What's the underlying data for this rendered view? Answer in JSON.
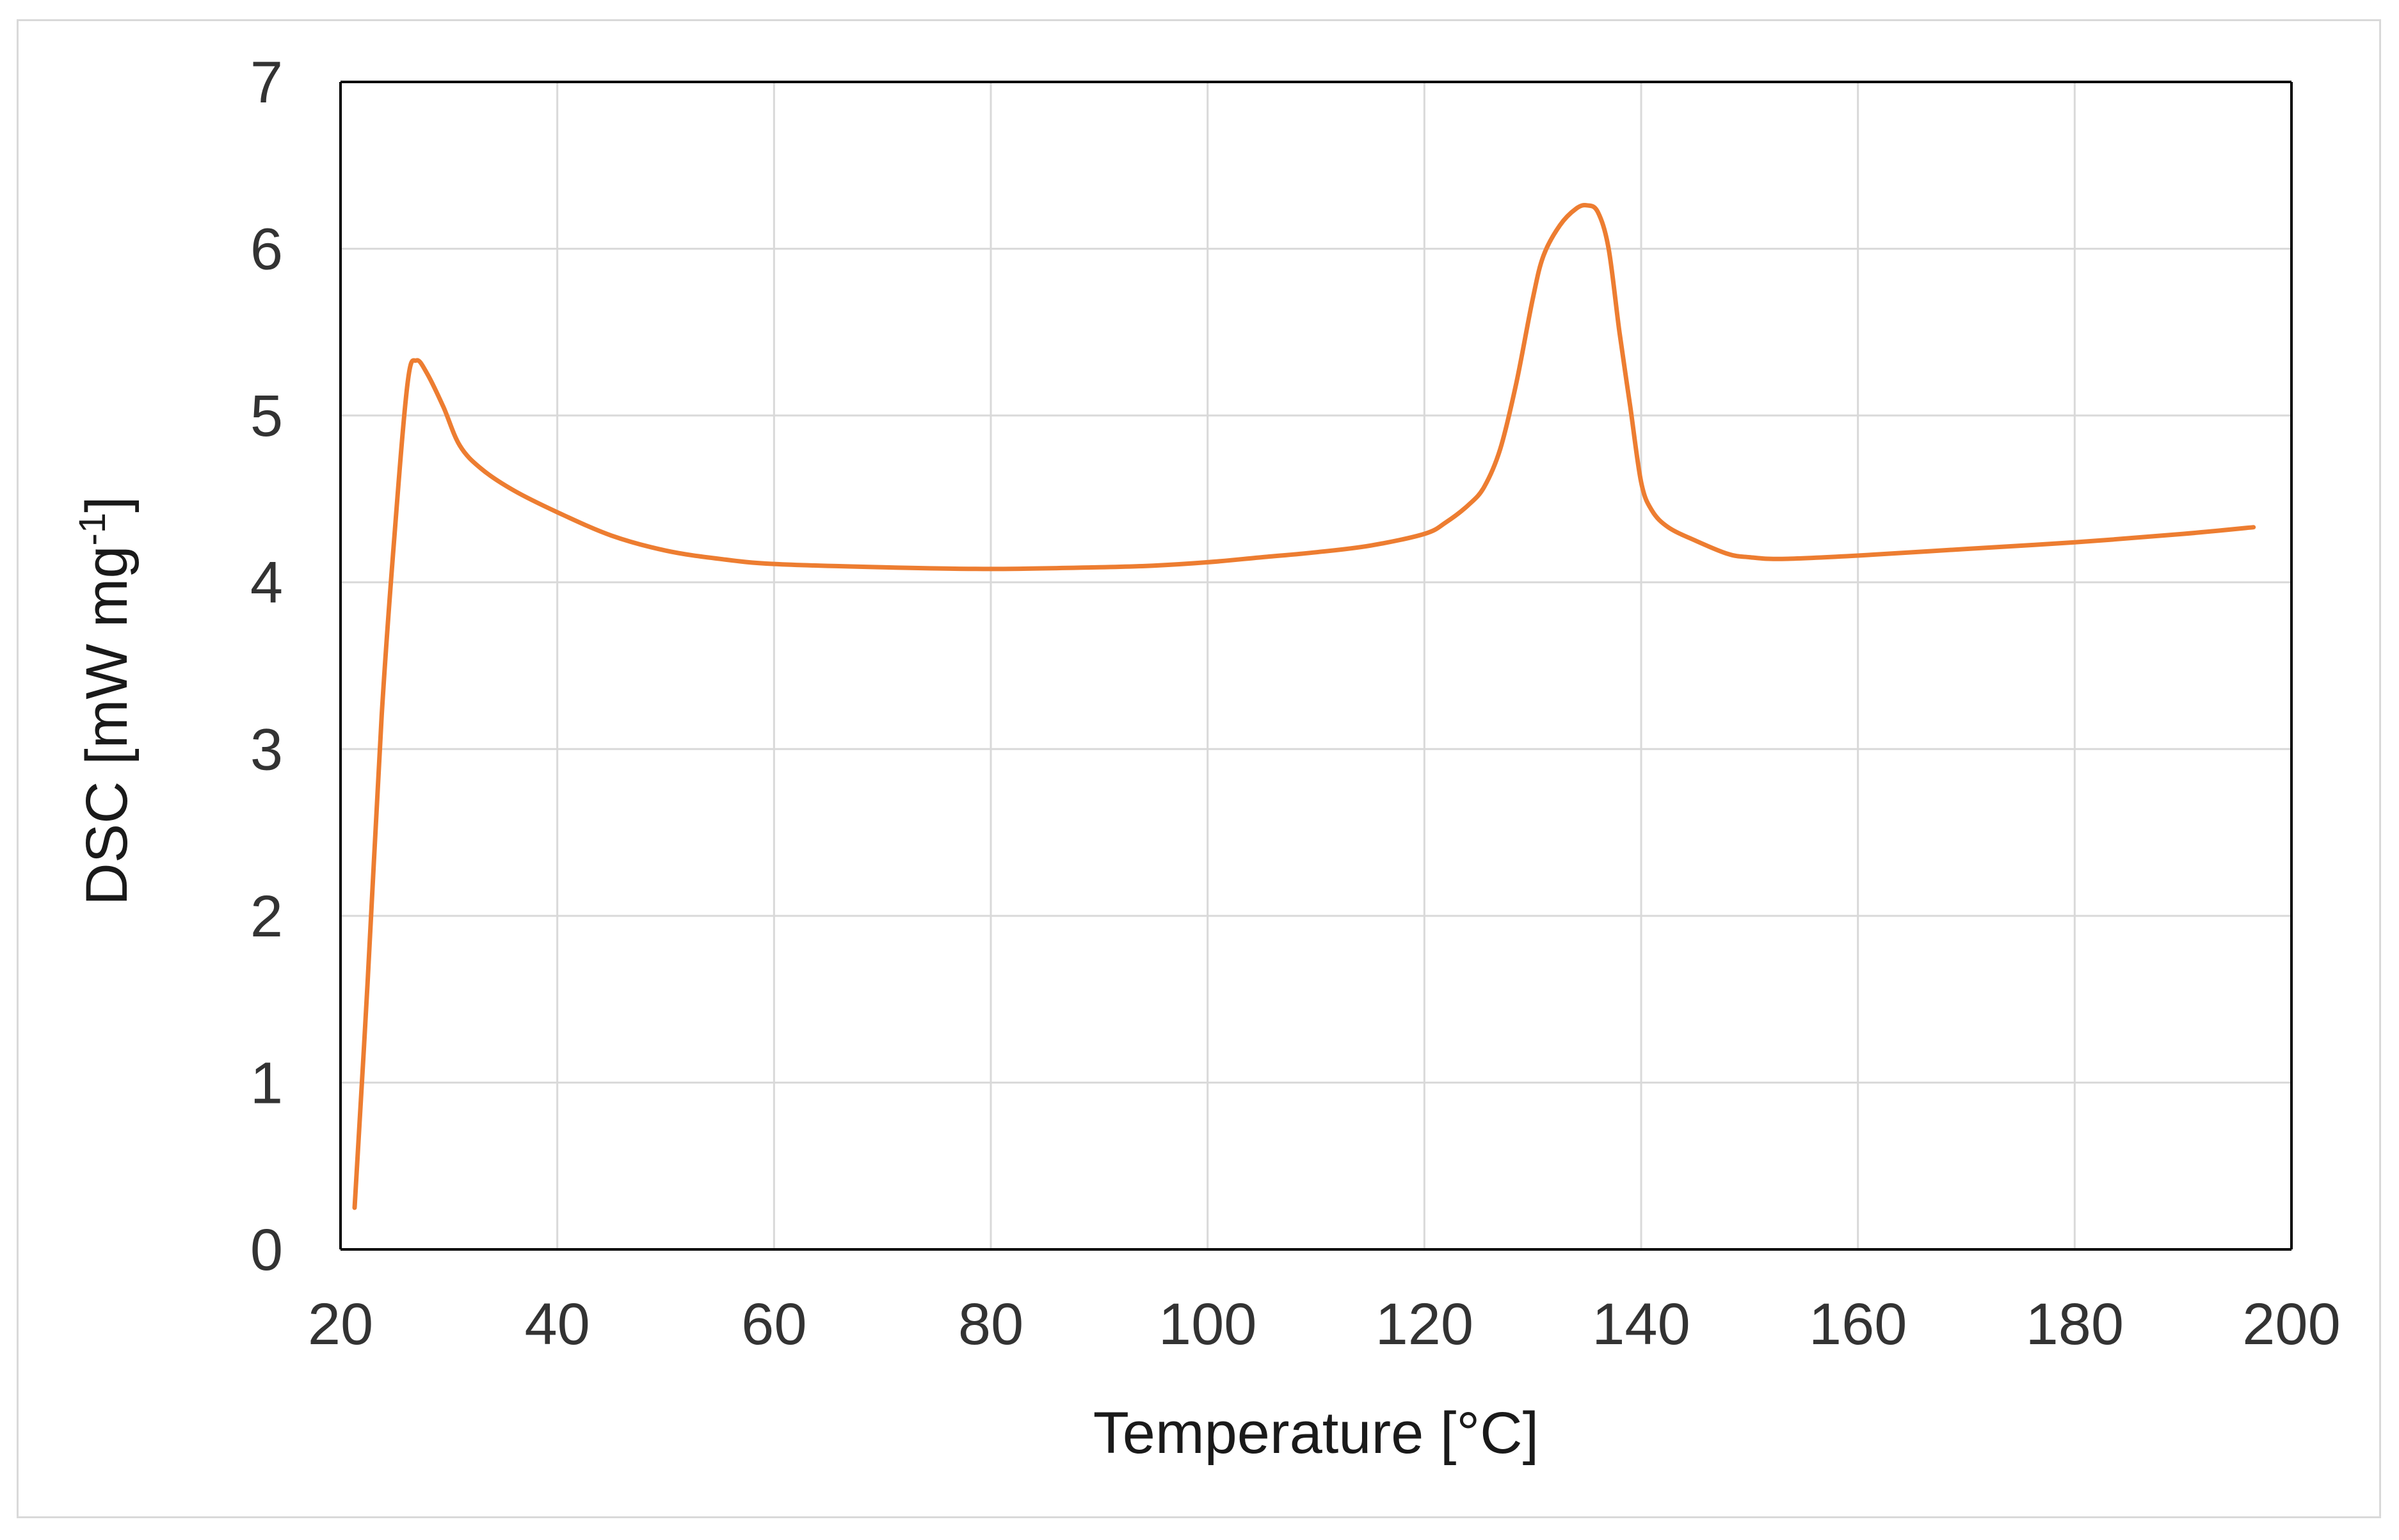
{
  "chart_data": {
    "type": "line",
    "title": "",
    "xlabel": "Temperature [°C]",
    "ylabel": {
      "prefix": "DSC [mW mg",
      "superscript": "-1",
      "suffix": "]"
    },
    "xlim": [
      20,
      200
    ],
    "ylim": [
      0,
      7
    ],
    "x_ticks": [
      20,
      40,
      60,
      80,
      100,
      120,
      140,
      160,
      180,
      200
    ],
    "y_ticks": [
      0,
      1,
      2,
      3,
      4,
      5,
      6,
      7
    ],
    "grid": true,
    "legend": "none",
    "series": [
      {
        "color": "#ed7d31",
        "points": [
          [
            21.3,
            0.25
          ],
          [
            22.5,
            1.6
          ],
          [
            23.8,
            3.2
          ],
          [
            25.0,
            4.3
          ],
          [
            26.2,
            5.2
          ],
          [
            27.0,
            5.33
          ],
          [
            28.0,
            5.25
          ],
          [
            29.5,
            5.05
          ],
          [
            31.0,
            4.82
          ],
          [
            33.0,
            4.68
          ],
          [
            36.0,
            4.55
          ],
          [
            40.0,
            4.42
          ],
          [
            45.0,
            4.28
          ],
          [
            50.0,
            4.19
          ],
          [
            55.0,
            4.14
          ],
          [
            60.0,
            4.11
          ],
          [
            70.0,
            4.09
          ],
          [
            80.0,
            4.08
          ],
          [
            90.0,
            4.09
          ],
          [
            95.0,
            4.1
          ],
          [
            100.0,
            4.12
          ],
          [
            105.0,
            4.15
          ],
          [
            110.0,
            4.18
          ],
          [
            115.0,
            4.22
          ],
          [
            120.0,
            4.29
          ],
          [
            122.0,
            4.36
          ],
          [
            124.0,
            4.46
          ],
          [
            125.5,
            4.57
          ],
          [
            127.0,
            4.8
          ],
          [
            128.5,
            5.2
          ],
          [
            130.0,
            5.7
          ],
          [
            131.0,
            5.96
          ],
          [
            132.5,
            6.14
          ],
          [
            134.0,
            6.24
          ],
          [
            135.0,
            6.26
          ],
          [
            136.0,
            6.22
          ],
          [
            137.0,
            6.0
          ],
          [
            138.0,
            5.5
          ],
          [
            139.0,
            5.05
          ],
          [
            140.0,
            4.6
          ],
          [
            141.0,
            4.43
          ],
          [
            142.5,
            4.33
          ],
          [
            145.0,
            4.25
          ],
          [
            148.0,
            4.17
          ],
          [
            150.0,
            4.15
          ],
          [
            153.0,
            4.14
          ],
          [
            160.0,
            4.16
          ],
          [
            170.0,
            4.2
          ],
          [
            180.0,
            4.24
          ],
          [
            190.0,
            4.29
          ],
          [
            196.5,
            4.33
          ]
        ]
      }
    ]
  }
}
